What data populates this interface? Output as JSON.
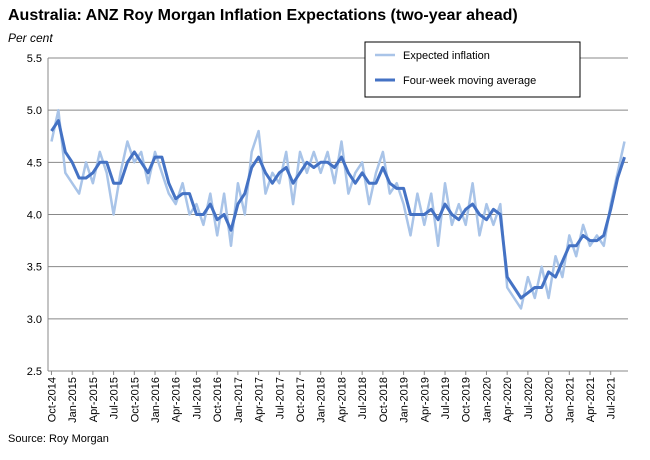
{
  "chart_data": {
    "type": "line",
    "title": "Australia: ANZ Roy Morgan Inflation Expectations (two-year ahead)",
    "y_label": "Per cent",
    "source": "Source: Roy Morgan",
    "categories": [
      "Oct-2014",
      null,
      null,
      "Jan-2015",
      null,
      null,
      "Apr-2015",
      null,
      null,
      "Jul-2015",
      null,
      null,
      "Oct-2015",
      null,
      null,
      "Jan-2016",
      null,
      null,
      "Apr-2016",
      null,
      null,
      "Jul-2016",
      null,
      null,
      "Oct-2016",
      null,
      null,
      "Jan-2017",
      null,
      null,
      "Apr-2017",
      null,
      null,
      "Jul-2017",
      null,
      null,
      "Oct-2017",
      null,
      null,
      "Jan-2018",
      null,
      null,
      "Apr-2018",
      null,
      null,
      "Jul-2018",
      null,
      null,
      "Oct-2018",
      null,
      null,
      "Jan-2019",
      null,
      null,
      "Apr-2019",
      null,
      null,
      "Jul-2019",
      null,
      null,
      "Oct-2019",
      null,
      null,
      "Jan-2020",
      null,
      null,
      "Apr-2020",
      null,
      null,
      "Jul-2020",
      null,
      null,
      "Oct-2020",
      null,
      null,
      "Jan-2021",
      null,
      null,
      "Apr-2021",
      null,
      null,
      "Jul-2021",
      null,
      null
    ],
    "series": [
      {
        "name": "Expected inflation",
        "color": "#a9c4e8",
        "width": 2.5,
        "values": [
          4.7,
          5.0,
          4.4,
          4.3,
          4.2,
          4.5,
          4.3,
          4.6,
          4.4,
          4.0,
          4.4,
          4.7,
          4.5,
          4.6,
          4.3,
          4.6,
          4.4,
          4.2,
          4.1,
          4.3,
          4.0,
          4.1,
          3.9,
          4.2,
          3.8,
          4.2,
          3.7,
          4.3,
          4.0,
          4.6,
          4.8,
          4.2,
          4.4,
          4.3,
          4.6,
          4.1,
          4.6,
          4.4,
          4.6,
          4.4,
          4.6,
          4.3,
          4.7,
          4.2,
          4.4,
          4.5,
          4.1,
          4.4,
          4.6,
          4.2,
          4.3,
          4.1,
          3.8,
          4.2,
          3.9,
          4.2,
          3.7,
          4.3,
          3.9,
          4.1,
          3.9,
          4.3,
          3.8,
          4.1,
          3.9,
          4.1,
          3.3,
          3.2,
          3.1,
          3.4,
          3.2,
          3.5,
          3.2,
          3.6,
          3.4,
          3.8,
          3.6,
          3.9,
          3.7,
          3.8,
          3.7,
          4.1,
          4.4,
          4.7
        ]
      },
      {
        "name": "Four-week moving average",
        "color": "#4472c4",
        "width": 3,
        "values": [
          4.8,
          4.9,
          4.6,
          4.5,
          4.35,
          4.35,
          4.4,
          4.5,
          4.5,
          4.3,
          4.3,
          4.5,
          4.6,
          4.5,
          4.4,
          4.55,
          4.55,
          4.3,
          4.15,
          4.2,
          4.2,
          4.0,
          4.0,
          4.1,
          3.95,
          4.0,
          3.85,
          4.1,
          4.2,
          4.45,
          4.55,
          4.4,
          4.3,
          4.4,
          4.45,
          4.3,
          4.4,
          4.5,
          4.45,
          4.5,
          4.5,
          4.45,
          4.55,
          4.4,
          4.3,
          4.4,
          4.3,
          4.3,
          4.45,
          4.3,
          4.25,
          4.25,
          4.0,
          4.0,
          4.0,
          4.05,
          3.95,
          4.1,
          4.0,
          3.95,
          4.05,
          4.1,
          4.0,
          3.95,
          4.05,
          4.0,
          3.4,
          3.3,
          3.2,
          3.25,
          3.3,
          3.3,
          3.45,
          3.4,
          3.55,
          3.7,
          3.7,
          3.8,
          3.75,
          3.75,
          3.8,
          4.05,
          4.35,
          4.55
        ]
      }
    ],
    "ylim": [
      2.5,
      5.5
    ],
    "yticks": [
      2.5,
      {
        "value": 3,
        "label": "3.0"
      },
      3.5,
      {
        "value": 4,
        "label": "4.0"
      },
      4.5,
      {
        "value": 5,
        "label": "5.0"
      },
      5.5
    ],
    "grid": true,
    "legend": "top-right"
  }
}
